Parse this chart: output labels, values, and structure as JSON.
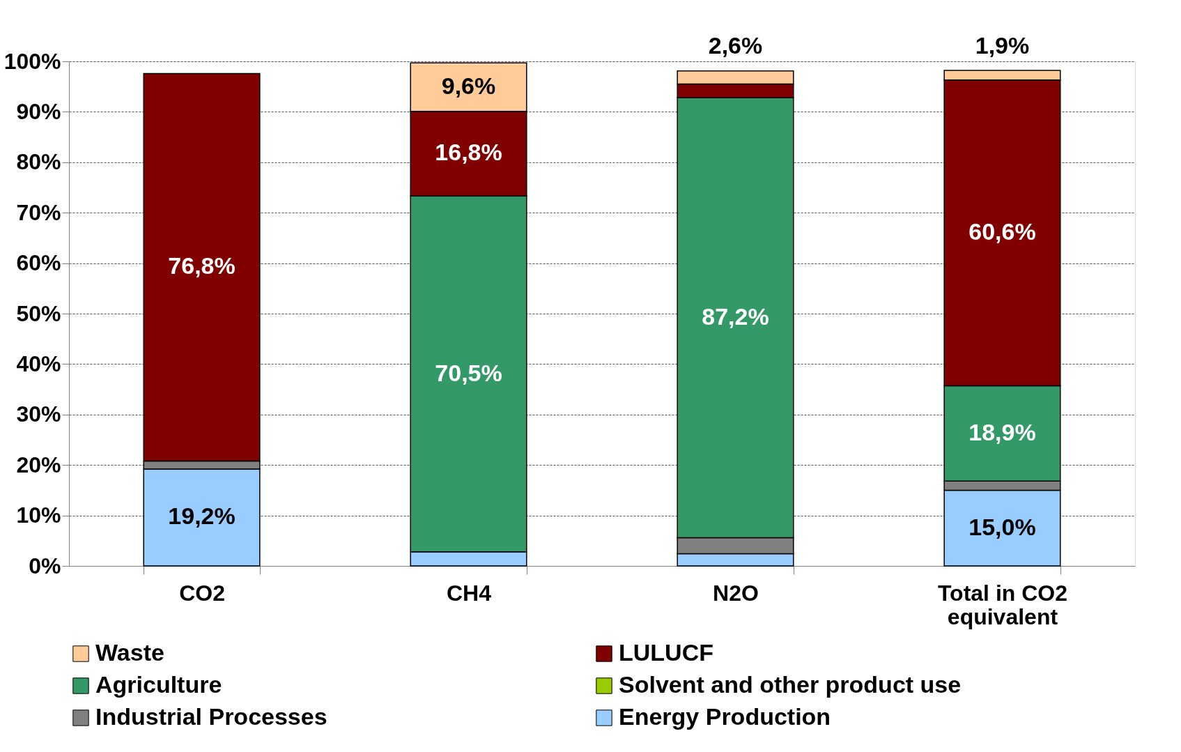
{
  "chart_data": {
    "type": "bar",
    "stacked": true,
    "categories": [
      "CO2",
      "CH4",
      "N2O",
      "Total in CO2 equivalent"
    ],
    "series": [
      {
        "name": "Energy Production",
        "color": "#99ccff",
        "values": [
          19.2,
          2.8,
          2.4,
          15.0
        ],
        "value_labels": [
          "19,2%",
          null,
          null,
          "15,0%"
        ]
      },
      {
        "name": "Industrial Processes",
        "color": "#808080",
        "values": [
          1.6,
          0,
          3.2,
          1.8
        ],
        "value_labels": [
          null,
          null,
          null,
          null
        ]
      },
      {
        "name": "Solvent and other product use",
        "color": "#99cc00",
        "values": [
          0,
          0,
          0,
          0
        ],
        "value_labels": [
          null,
          null,
          null,
          null
        ]
      },
      {
        "name": "Agriculture",
        "color": "#339966",
        "values": [
          0,
          70.5,
          87.2,
          18.9
        ],
        "value_labels": [
          null,
          "70,5%",
          "87,2%",
          "18,9%"
        ]
      },
      {
        "name": "LULUCF",
        "color": "#800000",
        "values": [
          76.8,
          16.8,
          2.7,
          60.6
        ],
        "value_labels": [
          "76,8%",
          "16,8%",
          null,
          "60,6%"
        ]
      },
      {
        "name": "Waste",
        "color": "#ffcc99",
        "values": [
          0,
          9.6,
          2.6,
          1.9
        ],
        "value_labels": [
          null,
          "9,6%",
          "2,6%",
          "1,9%"
        ]
      }
    ],
    "ylim": [
      0,
      100
    ],
    "yticks": [
      {
        "value": 0,
        "label": "0%"
      },
      {
        "value": 10,
        "label": "10%"
      },
      {
        "value": 20,
        "label": "20%"
      },
      {
        "value": 30,
        "label": "30%"
      },
      {
        "value": 40,
        "label": "40%"
      },
      {
        "value": 50,
        "label": "50%"
      },
      {
        "value": 60,
        "label": "60%"
      },
      {
        "value": 70,
        "label": "70%"
      },
      {
        "value": 80,
        "label": "80%"
      },
      {
        "value": 90,
        "label": "90%"
      },
      {
        "value": 100,
        "label": "100%"
      }
    ],
    "grid": "y",
    "legend": "bottom"
  }
}
